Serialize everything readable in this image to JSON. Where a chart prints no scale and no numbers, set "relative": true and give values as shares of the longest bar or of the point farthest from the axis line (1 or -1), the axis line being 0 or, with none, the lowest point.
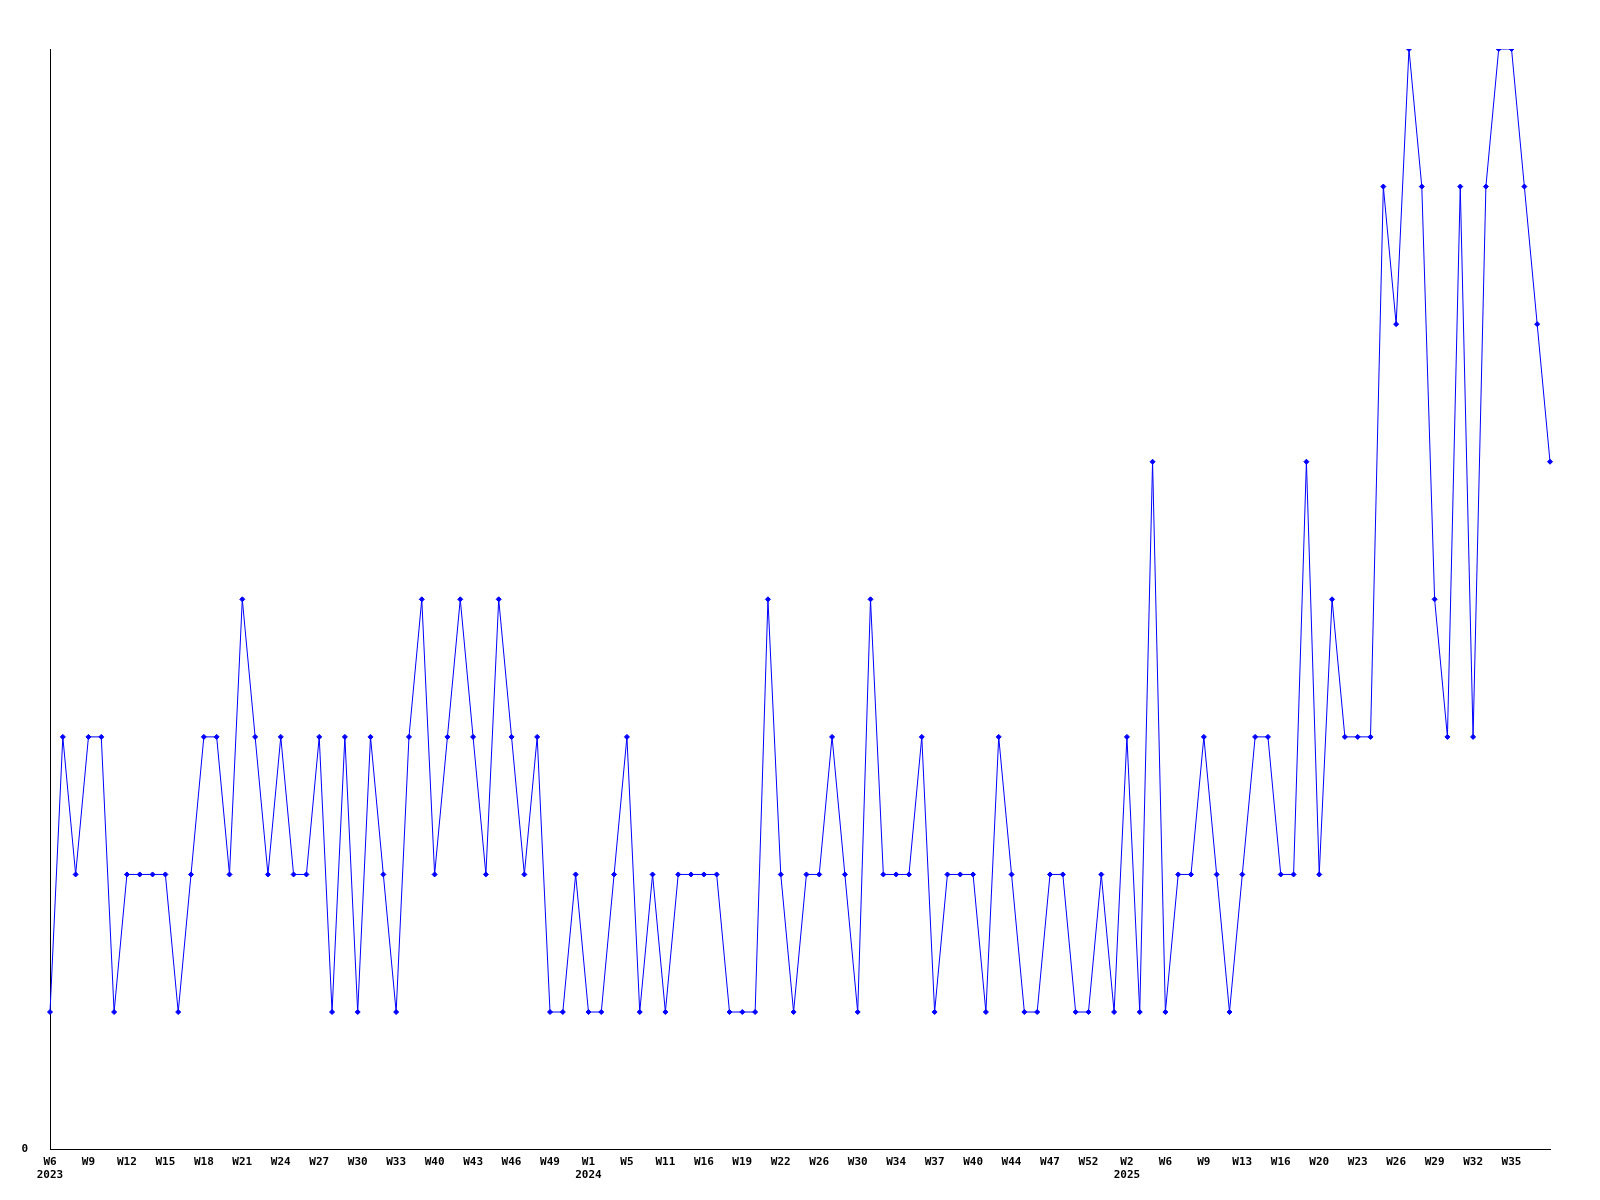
{
  "chart_data": {
    "type": "line",
    "relative": true,
    "marker": "diamond",
    "line_style": "solid",
    "grid": false,
    "legend": false,
    "annotations": [
      "0"
    ],
    "categories": [
      "W6 2023",
      null,
      null,
      "W9",
      null,
      null,
      "W12",
      null,
      null,
      "W15",
      null,
      null,
      "W18",
      null,
      null,
      "W21",
      null,
      null,
      "W24",
      null,
      null,
      "W27",
      null,
      null,
      "W30",
      null,
      null,
      "W33",
      null,
      null,
      "W40",
      null,
      null,
      "W43",
      null,
      null,
      "W46",
      null,
      null,
      "W49",
      null,
      null,
      "W1 2024",
      null,
      null,
      "W5",
      null,
      null,
      "W11",
      null,
      null,
      "W16",
      null,
      null,
      "W19",
      null,
      null,
      "W22",
      null,
      null,
      "W26",
      null,
      null,
      "W30",
      null,
      null,
      "W34",
      null,
      null,
      "W37",
      null,
      null,
      "W40",
      null,
      null,
      "W44",
      null,
      null,
      "W47",
      null,
      null,
      "W52",
      null,
      null,
      "W2 2025",
      null,
      null,
      "W6",
      null,
      null,
      "W9",
      null,
      null,
      "W13",
      null,
      null,
      "W16",
      null,
      null,
      "W20",
      null,
      null,
      "W23",
      null,
      null,
      "W26",
      null,
      null,
      "W29",
      null,
      null,
      "W32",
      null,
      null,
      "W35",
      null,
      null,
      null
    ],
    "series": [
      {
        "color": "#0000ff",
        "values": [
          0.125,
          0.375,
          0.25,
          0.375,
          0.375,
          0.125,
          0.25,
          0.25,
          0.25,
          0.25,
          0.125,
          0.25,
          0.375,
          0.375,
          0.25,
          0.5,
          0.375,
          0.25,
          0.375,
          0.25,
          0.25,
          0.375,
          0.125,
          0.375,
          0.125,
          0.375,
          0.25,
          0.125,
          0.375,
          0.5,
          0.25,
          0.375,
          0.5,
          0.375,
          0.25,
          0.5,
          0.375,
          0.25,
          0.375,
          0.125,
          0.125,
          0.25,
          0.125,
          0.125,
          0.25,
          0.375,
          0.125,
          0.25,
          0.125,
          0.25,
          0.25,
          0.25,
          0.25,
          0.125,
          0.125,
          0.125,
          0.5,
          0.25,
          0.125,
          0.25,
          0.25,
          0.375,
          0.25,
          0.125,
          0.5,
          0.25,
          0.25,
          0.25,
          0.375,
          0.125,
          0.25,
          0.25,
          0.25,
          0.125,
          0.375,
          0.25,
          0.125,
          0.125,
          0.25,
          0.25,
          0.125,
          0.125,
          0.25,
          0.125,
          0.375,
          0.125,
          0.625,
          0.125,
          0.25,
          0.25,
          0.375,
          0.25,
          0.125,
          0.25,
          0.375,
          0.375,
          0.25,
          0.25,
          0.625,
          0.25,
          0.5,
          0.375,
          0.375,
          0.375,
          0.875,
          0.75,
          1,
          0.875,
          0.5,
          0.375,
          0.875,
          0.375,
          0.875,
          1,
          1,
          0.875,
          0.75,
          0.625
        ]
      }
    ]
  }
}
